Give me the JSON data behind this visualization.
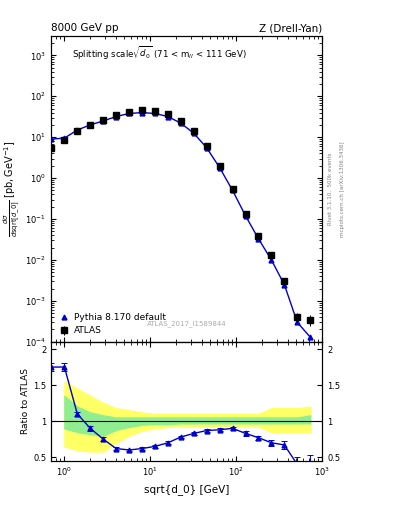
{
  "title_left": "8000 GeV pp",
  "title_right": "Z (Drell-Yan)",
  "watermark": "ATLAS_2017_I1589844",
  "right_label_top": "Rivet 3.1.10,  500k events",
  "right_label_bot": "mcplots.cern.ch [arXiv:1306.3436]",
  "data_x": [
    0.707,
    1.0,
    1.414,
    2.0,
    2.828,
    4.0,
    5.657,
    8.0,
    11.31,
    16.0,
    22.63,
    32.0,
    45.25,
    64.0,
    90.51,
    128.0,
    181.0,
    256.0,
    362.0,
    512.0,
    724.0
  ],
  "atlas_y": [
    5.5,
    8.5,
    14.0,
    20.0,
    27.0,
    35.0,
    42.0,
    45.0,
    43.0,
    36.0,
    25.0,
    14.0,
    6.0,
    2.0,
    0.55,
    0.13,
    0.038,
    0.013,
    0.003,
    0.0004,
    0.00035
  ],
  "atlas_yerr": [
    0.5,
    0.7,
    1.0,
    1.5,
    2.0,
    2.5,
    3.0,
    3.0,
    3.0,
    2.5,
    2.0,
    1.2,
    0.5,
    0.2,
    0.05,
    0.015,
    0.004,
    0.002,
    0.0005,
    0.0001,
    0.0001
  ],
  "pythia_y": [
    9.0,
    9.5,
    15.0,
    20.0,
    25.0,
    32.0,
    38.0,
    40.0,
    38.0,
    32.0,
    22.0,
    12.5,
    5.5,
    1.8,
    0.5,
    0.12,
    0.033,
    0.01,
    0.0025,
    0.0003,
    0.00013
  ],
  "ratio_pythia": [
    1.75,
    1.75,
    1.1,
    0.9,
    0.75,
    0.62,
    0.6,
    0.62,
    0.65,
    0.7,
    0.78,
    0.83,
    0.87,
    0.88,
    0.9,
    0.83,
    0.77,
    0.7,
    0.67,
    0.4,
    0.38
  ],
  "ratio_yerr": [
    0.05,
    0.05,
    0.03,
    0.03,
    0.03,
    0.02,
    0.02,
    0.02,
    0.02,
    0.02,
    0.02,
    0.02,
    0.02,
    0.02,
    0.02,
    0.03,
    0.03,
    0.04,
    0.05,
    0.1,
    0.15
  ],
  "band_x": [
    1.0,
    1.414,
    2.0,
    2.828,
    4.0,
    5.657,
    8.0,
    11.31,
    16.0,
    22.63,
    32.0,
    45.25,
    64.0,
    90.51,
    128.0,
    181.0,
    256.0,
    362.0,
    512.0,
    724.0
  ],
  "green_band_lo": [
    0.9,
    0.85,
    0.82,
    0.8,
    0.88,
    0.92,
    0.95,
    0.96,
    0.96,
    0.97,
    0.97,
    0.97,
    0.97,
    0.97,
    0.97,
    0.97,
    0.97,
    0.97,
    0.97,
    0.97
  ],
  "green_band_hi": [
    1.35,
    1.2,
    1.12,
    1.08,
    1.05,
    1.05,
    1.05,
    1.05,
    1.05,
    1.05,
    1.05,
    1.05,
    1.05,
    1.05,
    1.05,
    1.05,
    1.05,
    1.05,
    1.05,
    1.08
  ],
  "yellow_band_lo": [
    0.65,
    0.6,
    0.58,
    0.58,
    0.7,
    0.8,
    0.87,
    0.9,
    0.92,
    0.93,
    0.93,
    0.93,
    0.93,
    0.93,
    0.93,
    0.93,
    0.85,
    0.85,
    0.85,
    0.85
  ],
  "yellow_band_hi": [
    1.55,
    1.45,
    1.35,
    1.25,
    1.18,
    1.15,
    1.12,
    1.1,
    1.1,
    1.1,
    1.1,
    1.1,
    1.1,
    1.1,
    1.1,
    1.1,
    1.18,
    1.18,
    1.18,
    1.2
  ],
  "data_color": "black",
  "pythia_color": "#0000cc",
  "green_color": "#90EE90",
  "yellow_color": "#FFFF66",
  "xlim": [
    0.7,
    1000
  ],
  "ylim_main": [
    0.0001,
    3000.0
  ],
  "ylim_ratio": [
    0.45,
    2.1
  ],
  "ratio_yticks": [
    0.5,
    1.0,
    1.5,
    2.0
  ]
}
